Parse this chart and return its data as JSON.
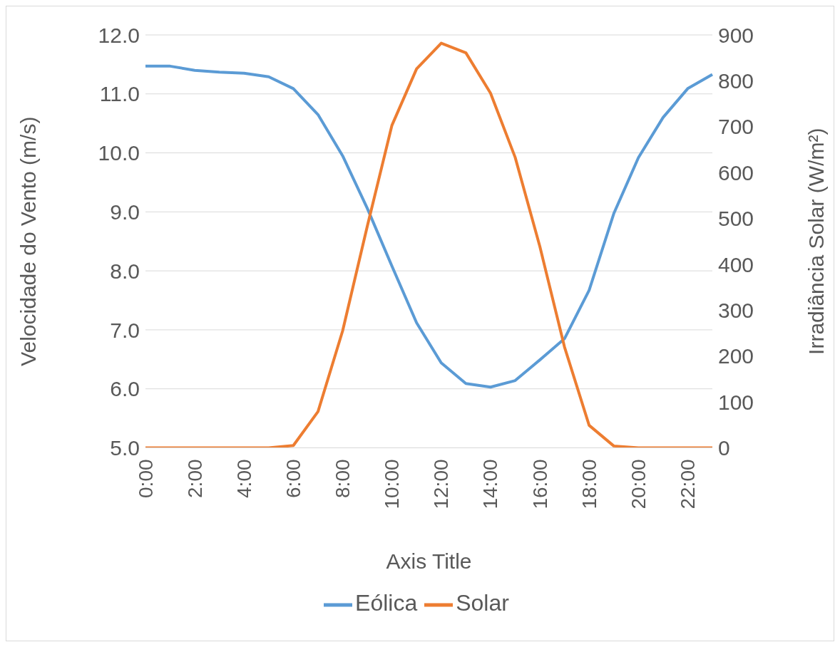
{
  "chart_data": {
    "type": "line",
    "xlabel": "Axis Title",
    "ylabel": "Velocidade do Vento (m/s)",
    "y2label": "Irradiância Solar (W/m²)",
    "categories": [
      "0:00",
      null,
      "2:00",
      null,
      "4:00",
      null,
      "6:00",
      null,
      "8:00",
      null,
      "10:00",
      null,
      "12:00",
      null,
      "14:00",
      null,
      "16:00",
      null,
      "18:00",
      null,
      "20:00",
      null,
      "22:00",
      null
    ],
    "series": [
      {
        "name": "Eólica",
        "color": "#5b9bd5",
        "values": [
          11.47,
          11.47,
          11.4,
          11.37,
          11.35,
          11.29,
          11.09,
          10.65,
          9.95,
          9.06,
          8.08,
          7.12,
          6.44,
          6.09,
          6.03,
          6.14,
          6.49,
          6.85,
          7.67,
          8.97,
          9.92,
          10.6,
          11.09,
          11.33
        ]
      },
      {
        "name": "Solar",
        "color": "#ed7d31",
        "axis": "y2",
        "values": [
          0,
          0,
          0,
          0,
          0,
          0,
          5,
          79,
          255,
          483,
          703,
          826,
          882,
          861,
          773,
          633,
          439,
          220,
          49,
          4,
          0,
          0,
          0,
          0
        ]
      }
    ],
    "ylim": [
      5,
      12
    ],
    "yticks": [
      {
        "value": 5,
        "label": "5.0"
      },
      {
        "value": 6,
        "label": "6.0"
      },
      {
        "value": 7,
        "label": "7.0"
      },
      {
        "value": 8,
        "label": "8.0"
      },
      {
        "value": 9,
        "label": "9.0"
      },
      {
        "value": 10,
        "label": "10.0"
      },
      {
        "value": 11,
        "label": "11.0"
      },
      {
        "value": 12,
        "label": "12.0"
      }
    ],
    "y2lim": [
      0,
      900
    ],
    "y2ticks": [
      0,
      100,
      200,
      300,
      400,
      500,
      600,
      700,
      800,
      900
    ],
    "grid": "y",
    "legend": "bottom",
    "marker": "none",
    "line_style": "solid"
  }
}
